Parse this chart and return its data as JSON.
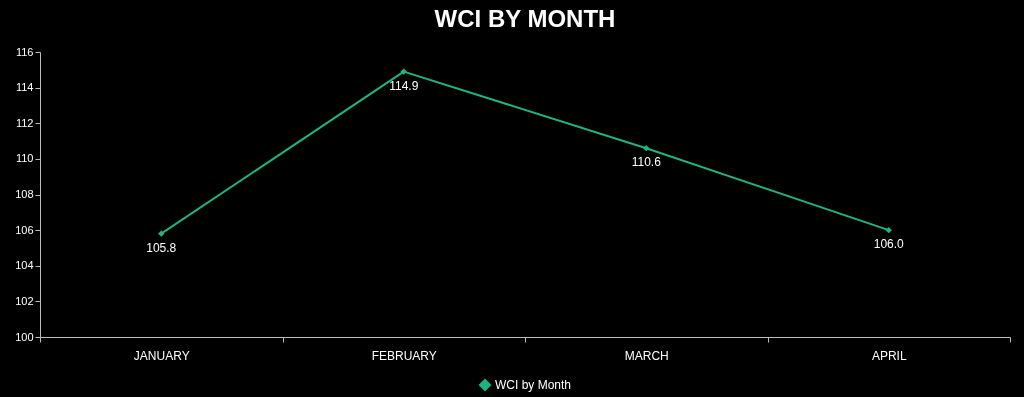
{
  "chart_data": {
    "type": "line",
    "title": "WCI BY MONTH",
    "categories": [
      "JANUARY",
      "FEBRUARY",
      "MARCH",
      "APRIL"
    ],
    "series": [
      {
        "name": "WCI by Month",
        "color": "#1db584",
        "values": [
          105.8,
          114.9,
          110.6,
          106.0
        ],
        "value_labels": [
          "105.8",
          "114.9",
          "110.6",
          "106.0"
        ]
      }
    ],
    "ylim": [
      100,
      116
    ],
    "yticks": [
      100,
      102,
      104,
      106,
      108,
      110,
      112,
      114,
      116
    ],
    "marker": "diamond",
    "legend": "bottom"
  }
}
